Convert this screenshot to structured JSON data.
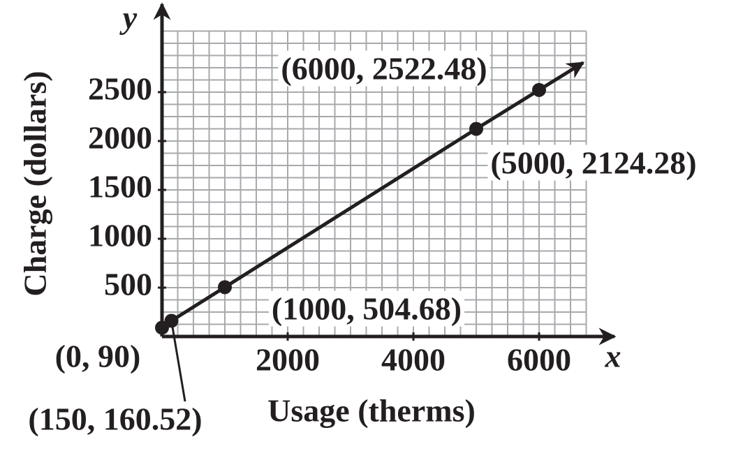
{
  "chart_data": {
    "type": "line",
    "x_label": "Usage (therms)",
    "y_label": "Charge (dollars)",
    "x_axis_letter": "x",
    "y_axis_letter": "y",
    "series": [
      {
        "color": "#231f20",
        "x": [
          0,
          150,
          1000,
          5000,
          6000
        ],
        "values": [
          90,
          160.52,
          504.68,
          2124.28,
          2522.48
        ],
        "value_labels": [
          "(0, 90)",
          "(150, 160.52)",
          "(1000, 504.68)",
          "(5000, 2124.28)",
          "(6000, 2522.48)"
        ]
      }
    ],
    "xlim": [
      0,
      6750
    ],
    "ylim": [
      0,
      3125
    ],
    "xticks": [
      2000,
      4000,
      6000
    ],
    "yticks": [
      500,
      1000,
      1500,
      2000,
      2500
    ],
    "xgrid": [
      0,
      250,
      500,
      750,
      1000,
      1250,
      1500,
      1750,
      2000,
      2250,
      2500,
      2750,
      3000,
      3250,
      3500,
      3750,
      4000,
      4250,
      4500,
      4750,
      5000,
      5250,
      5500,
      5750,
      6000,
      6250,
      6500,
      6750
    ],
    "ygrid": [
      0,
      125,
      250,
      375,
      500,
      625,
      750,
      875,
      1000,
      1125,
      1250,
      1375,
      1500,
      1625,
      1750,
      1875,
      2000,
      2125,
      2250,
      2375,
      2500,
      2625,
      2750,
      2875,
      3000,
      3125
    ],
    "grid": true
  }
}
